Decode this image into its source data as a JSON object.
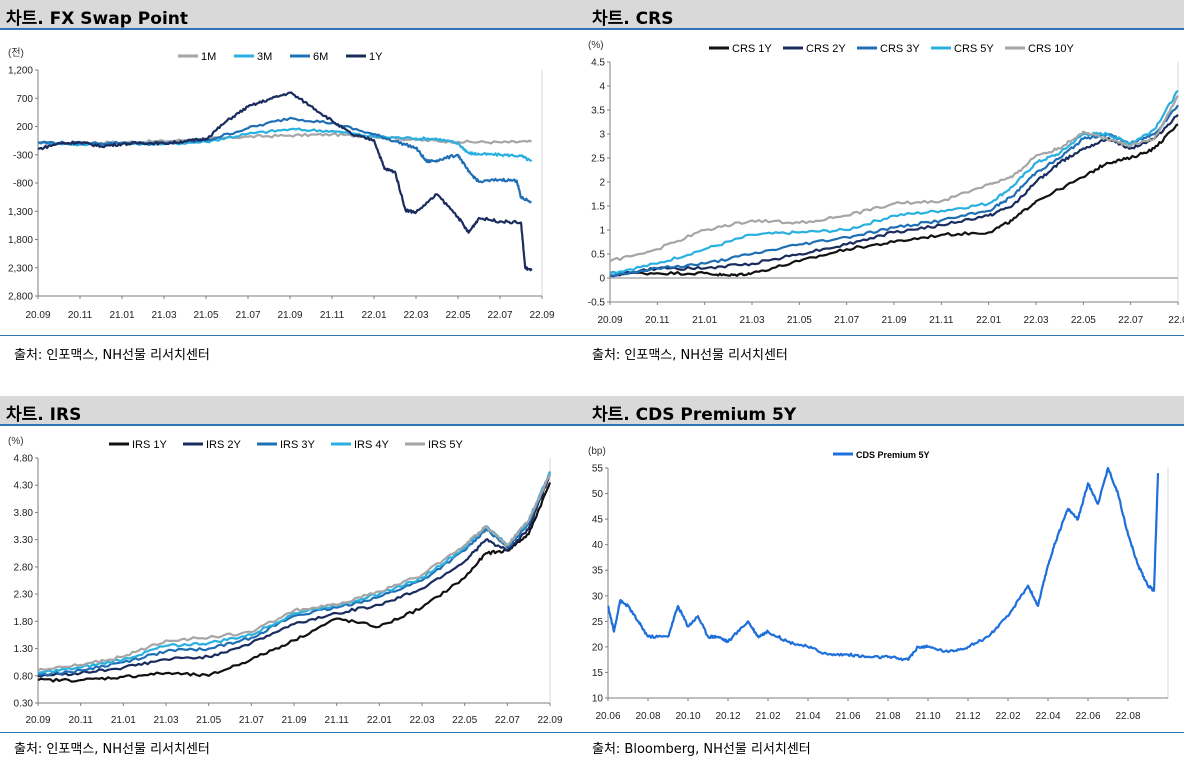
{
  "panels": [
    {
      "title": "차트. FX Swap Point",
      "source": "출처: 인포맥스, NH선물 리서치센터",
      "chart_data": {
        "type": "line",
        "unit": "(전)",
        "ylim": [
          -2800,
          1200
        ],
        "inverted": true,
        "yticks": [
          1200,
          700,
          200,
          -300,
          -800,
          -1300,
          -1800,
          -2300,
          -2800
        ],
        "ytick_labels": [
          "1,200",
          "700",
          "200",
          "-300",
          "-800",
          "1,300",
          "1,800",
          "2,300",
          "2,800"
        ],
        "xlim": [
          0,
          24
        ],
        "xticks": [
          0,
          2,
          4,
          6,
          8,
          10,
          12,
          14,
          16,
          18,
          20,
          22,
          24
        ],
        "xtick_labels": [
          "20.09",
          "20.11",
          "21.01",
          "21.03",
          "21.05",
          "21.07",
          "21.09",
          "21.11",
          "22.01",
          "22.03",
          "22.05",
          "22.07",
          "22.09"
        ],
        "legend_position": "top",
        "series": [
          {
            "name": "1M",
            "color": "#a6a6a6",
            "x": [
              0,
              2,
              4,
              6,
              8,
              10,
              12,
              14,
              16,
              18,
              20,
              22,
              23.5
            ],
            "values": [
              -100,
              -90,
              -80,
              -60,
              -20,
              20,
              40,
              60,
              20,
              -40,
              -70,
              -80,
              -70
            ]
          },
          {
            "name": "3M",
            "color": "#2ab0e0",
            "x": [
              0,
              2,
              4,
              6,
              8,
              10,
              12,
              14,
              16,
              18,
              19,
              20,
              20.5,
              21,
              22,
              23,
              23.5
            ],
            "values": [
              -80,
              -120,
              -100,
              -110,
              -70,
              70,
              150,
              120,
              20,
              -10,
              -20,
              -100,
              -270,
              -290,
              -300,
              -320,
              -420
            ]
          },
          {
            "name": "6M",
            "color": "#1f6fb4",
            "x": [
              0,
              2,
              4,
              6,
              8,
              10,
              12,
              14,
              16,
              17,
              18,
              18.5,
              19,
              20,
              20.5,
              21,
              22,
              22.8,
              23,
              23.5
            ],
            "values": [
              -80,
              -100,
              -90,
              -100,
              -50,
              170,
              350,
              260,
              60,
              -60,
              -180,
              -420,
              -400,
              -300,
              -600,
              -780,
              -740,
              -760,
              -1060,
              -1130
            ]
          },
          {
            "name": "1Y",
            "color": "#1a2c5e",
            "x": [
              0,
              1,
              2,
              3,
              4,
              5,
              6,
              7,
              8,
              9,
              10,
              11,
              12,
              13,
              14,
              15,
              16,
              16.5,
              17,
              17.5,
              18,
              19,
              20,
              20.5,
              21,
              22,
              23,
              23.2,
              23.5
            ],
            "values": [
              -200,
              -100,
              -80,
              -150,
              -110,
              -90,
              -100,
              -60,
              -20,
              300,
              550,
              680,
              800,
              560,
              300,
              50,
              -40,
              -550,
              -600,
              -1280,
              -1320,
              -1000,
              -1400,
              -1680,
              -1420,
              -1480,
              -1500,
              -2300,
              -2350
            ]
          }
        ]
      }
    },
    {
      "title": "차트. CRS",
      "source": "출처: 인포맥스, NH선물 리서치센터",
      "chart_data": {
        "type": "line",
        "unit": "(%)",
        "ylim": [
          -0.5,
          4.5
        ],
        "yticks": [
          -0.5,
          0,
          0.5,
          1,
          1.5,
          2,
          2.5,
          3,
          3.5,
          4,
          4.5
        ],
        "ytick_labels": [
          "-0.5",
          "0",
          "0.5",
          "1",
          "1.5",
          "2",
          "2.5",
          "3",
          "3.5",
          "4",
          "4.5"
        ],
        "xlim": [
          0,
          24
        ],
        "xticks": [
          0,
          2,
          4,
          6,
          8,
          10,
          12,
          14,
          16,
          18,
          20,
          22,
          24
        ],
        "xtick_labels": [
          "20.09",
          "20.11",
          "21.01",
          "21.03",
          "21.05",
          "21.07",
          "21.09",
          "21.11",
          "22.01",
          "22.03",
          "22.05",
          "22.07",
          "22.0"
        ],
        "legend_position": "top",
        "series": [
          {
            "name": "CRS 1Y",
            "color": "#111111",
            "x": [
              0,
              2,
              4,
              5,
              6,
              8,
              10,
              12,
              14,
              16,
              17,
              18,
              20,
              21,
              22,
              23,
              24
            ],
            "values": [
              0.1,
              0.1,
              0.1,
              0.05,
              0.1,
              0.35,
              0.6,
              0.75,
              0.9,
              0.95,
              1.2,
              1.6,
              2.1,
              2.4,
              2.5,
              2.7,
              3.2
            ]
          },
          {
            "name": "CRS 2Y",
            "color": "#1a2c5e",
            "x": [
              0,
              2,
              4,
              6,
              8,
              10,
              12,
              14,
              16,
              17,
              18,
              19,
              20,
              21,
              22,
              23,
              24
            ],
            "values": [
              0.05,
              0.2,
              0.2,
              0.3,
              0.5,
              0.7,
              0.95,
              1.1,
              1.3,
              1.5,
              2.0,
              2.4,
              2.7,
              2.9,
              2.7,
              2.9,
              3.4
            ]
          },
          {
            "name": "CRS 3Y",
            "color": "#1f6fb4",
            "x": [
              0,
              2,
              4,
              6,
              8,
              10,
              12,
              14,
              16,
              17,
              18,
              19,
              20,
              21,
              22,
              23,
              24
            ],
            "values": [
              0.05,
              0.2,
              0.3,
              0.5,
              0.7,
              0.85,
              1.05,
              1.2,
              1.4,
              1.7,
              2.2,
              2.5,
              2.9,
              3.0,
              2.8,
              3.0,
              3.6
            ]
          },
          {
            "name": "CRS 5Y",
            "color": "#2ab0e0",
            "x": [
              0,
              2,
              4,
              6,
              8,
              10,
              12,
              14,
              16,
              17,
              18,
              19,
              20,
              21,
              22,
              23,
              24
            ],
            "values": [
              0.1,
              0.3,
              0.6,
              0.9,
              0.95,
              1.0,
              1.3,
              1.4,
              1.55,
              1.9,
              2.4,
              2.6,
              3.0,
              3.0,
              2.8,
              3.1,
              3.9
            ]
          },
          {
            "name": "CRS 10Y",
            "color": "#a6a6a6",
            "x": [
              0,
              2,
              4,
              6,
              8,
              10,
              12,
              14,
              16,
              17,
              18,
              19,
              20,
              21,
              22,
              23,
              24
            ],
            "values": [
              0.35,
              0.6,
              1.0,
              1.2,
              1.15,
              1.3,
              1.55,
              1.6,
              1.95,
              2.1,
              2.55,
              2.7,
              3.05,
              2.9,
              2.75,
              2.9,
              3.8
            ]
          }
        ]
      }
    },
    {
      "title": "차트. IRS",
      "source": "출처: 인포맥스, NH선물 리서치센터",
      "chart_data": {
        "type": "line",
        "unit": "(%)",
        "ylim": [
          0.3,
          4.8
        ],
        "yticks": [
          0.3,
          0.8,
          1.3,
          1.8,
          2.3,
          2.8,
          3.3,
          3.8,
          4.3,
          4.8
        ],
        "ytick_labels": [
          "0.30",
          "0.80",
          "1.30",
          "1.80",
          "2.30",
          "2.80",
          "3.30",
          "3.80",
          "4.30",
          "4.80"
        ],
        "xlim": [
          0,
          24
        ],
        "xticks": [
          0,
          2,
          4,
          6,
          8,
          10,
          12,
          14,
          16,
          18,
          20,
          22,
          24
        ],
        "xtick_labels": [
          "20.09",
          "20.11",
          "21.01",
          "21.03",
          "21.05",
          "21.07",
          "21.09",
          "21.11",
          "22.01",
          "22.03",
          "22.05",
          "22.07",
          "22.09"
        ],
        "legend_position": "top",
        "series": [
          {
            "name": "IRS 1Y",
            "color": "#111111",
            "x": [
              0,
              2,
              4,
              6,
              8,
              10,
              12,
              14,
              16,
              18,
              20,
              21,
              22,
              23,
              24
            ],
            "values": [
              0.72,
              0.72,
              0.78,
              0.85,
              0.8,
              1.1,
              1.45,
              1.85,
              1.7,
              2.05,
              2.6,
              3.05,
              3.1,
              3.4,
              4.35
            ]
          },
          {
            "name": "IRS 2Y",
            "color": "#1a2c5e",
            "x": [
              0,
              2,
              4,
              6,
              8,
              10,
              12,
              14,
              16,
              18,
              20,
              21,
              22,
              23,
              24
            ],
            "values": [
              0.8,
              0.85,
              0.95,
              1.1,
              1.15,
              1.4,
              1.75,
              1.95,
              2.1,
              2.4,
              2.9,
              3.3,
              3.1,
              3.5,
              4.5
            ]
          },
          {
            "name": "IRS 3Y",
            "color": "#1f6fb4",
            "x": [
              0,
              2,
              4,
              6,
              8,
              10,
              12,
              14,
              16,
              18,
              20,
              21,
              22,
              23,
              24
            ],
            "values": [
              0.82,
              0.9,
              1.05,
              1.25,
              1.3,
              1.5,
              1.9,
              2.05,
              2.25,
              2.55,
              3.1,
              3.5,
              3.15,
              3.6,
              4.55
            ]
          },
          {
            "name": "IRS 4Y",
            "color": "#2ab0e0",
            "x": [
              0,
              2,
              4,
              6,
              8,
              10,
              12,
              14,
              16,
              18,
              20,
              21,
              22,
              23,
              24
            ],
            "values": [
              0.85,
              0.95,
              1.1,
              1.35,
              1.4,
              1.55,
              1.95,
              2.1,
              2.3,
              2.6,
              3.15,
              3.55,
              3.2,
              3.65,
              4.55
            ]
          },
          {
            "name": "IRS 5Y",
            "color": "#a6a6a6",
            "x": [
              0,
              2,
              4,
              6,
              8,
              10,
              12,
              14,
              16,
              18,
              20,
              21,
              22,
              23,
              24
            ],
            "values": [
              0.9,
              1.0,
              1.15,
              1.45,
              1.5,
              1.6,
              2.0,
              2.1,
              2.35,
              2.65,
              3.2,
              3.55,
              3.2,
              3.65,
              4.5
            ]
          }
        ]
      }
    },
    {
      "title": "차트. CDS Premium 5Y",
      "source": "출처: Bloomberg, NH선물 리서치센터",
      "chart_data": {
        "type": "line",
        "unit": "(bp)",
        "ylim": [
          10,
          55
        ],
        "yticks": [
          10,
          15,
          20,
          25,
          30,
          35,
          40,
          45,
          50,
          55
        ],
        "ytick_labels": [
          "10",
          "15",
          "20",
          "25",
          "30",
          "35",
          "40",
          "45",
          "50",
          "55"
        ],
        "xlim": [
          0,
          28
        ],
        "xticks": [
          0,
          2,
          4,
          6,
          8,
          10,
          12,
          14,
          16,
          18,
          20,
          22,
          24,
          26
        ],
        "xtick_labels": [
          "20.06",
          "20.08",
          "20.10",
          "20.12",
          "21.02",
          "21.04",
          "21.06",
          "21.08",
          "21.10",
          "21.12",
          "22.02",
          "22.04",
          "22.06",
          "22.08"
        ],
        "legend_position": "top",
        "series": [
          {
            "name": "CDS Premium 5Y",
            "color": "#1f6fdb",
            "x": [
              0,
              0.3,
              0.6,
              1,
              1.5,
              2,
              3,
              3.5,
              4,
              4.5,
              5,
              5.5,
              6,
              7,
              7.5,
              8,
              9,
              10,
              11,
              12,
              13,
              14,
              15,
              15.5,
              16,
              17,
              18,
              19,
              20,
              21,
              21.5,
              22,
              22.5,
              23,
              23.5,
              24,
              24.5,
              25,
              25.5,
              26,
              26.5,
              27,
              27.3,
              27.5
            ],
            "values": [
              28,
              23,
              29,
              28,
              25,
              22,
              22,
              28,
              24,
              26,
              22,
              22,
              21,
              25,
              22,
              23,
              21,
              20,
              18.5,
              18.5,
              18,
              18,
              17.5,
              20,
              20,
              19,
              20,
              22,
              26,
              32,
              28,
              36,
              42,
              47,
              45,
              52,
              48,
              55,
              50,
              42,
              36,
              32,
              31,
              54
            ]
          }
        ]
      }
    }
  ]
}
